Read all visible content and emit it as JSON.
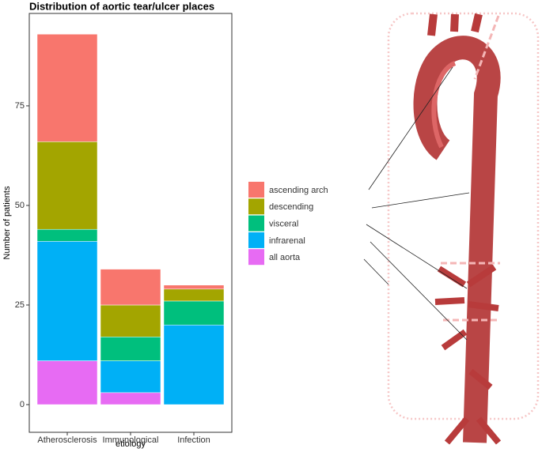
{
  "chart_data": {
    "type": "stacked_bar",
    "title": "Distribution of aortic tear/ulcer places",
    "y_label": "Number of patients",
    "x_label": "etiology",
    "categories": [
      "Atherosclerosis",
      "Immunological",
      "Infection"
    ],
    "series": [
      {
        "name": "all aorta",
        "color": "#E76BF3",
        "values": [
          11,
          3,
          0
        ]
      },
      {
        "name": "infrarenal",
        "color": "#00B0F6",
        "values": [
          30,
          8,
          20
        ]
      },
      {
        "name": "visceral",
        "color": "#00BF7D",
        "values": [
          3,
          6,
          6
        ]
      },
      {
        "name": "descending",
        "color": "#A3A500",
        "values": [
          22,
          8,
          3
        ]
      },
      {
        "name": "ascending arch",
        "color": "#F8766D",
        "values": [
          27,
          9,
          1
        ]
      }
    ],
    "ylim": [
      -6.95,
      98.2
    ],
    "yticks": [
      0,
      25,
      50,
      75
    ],
    "grid": false
  }
}
